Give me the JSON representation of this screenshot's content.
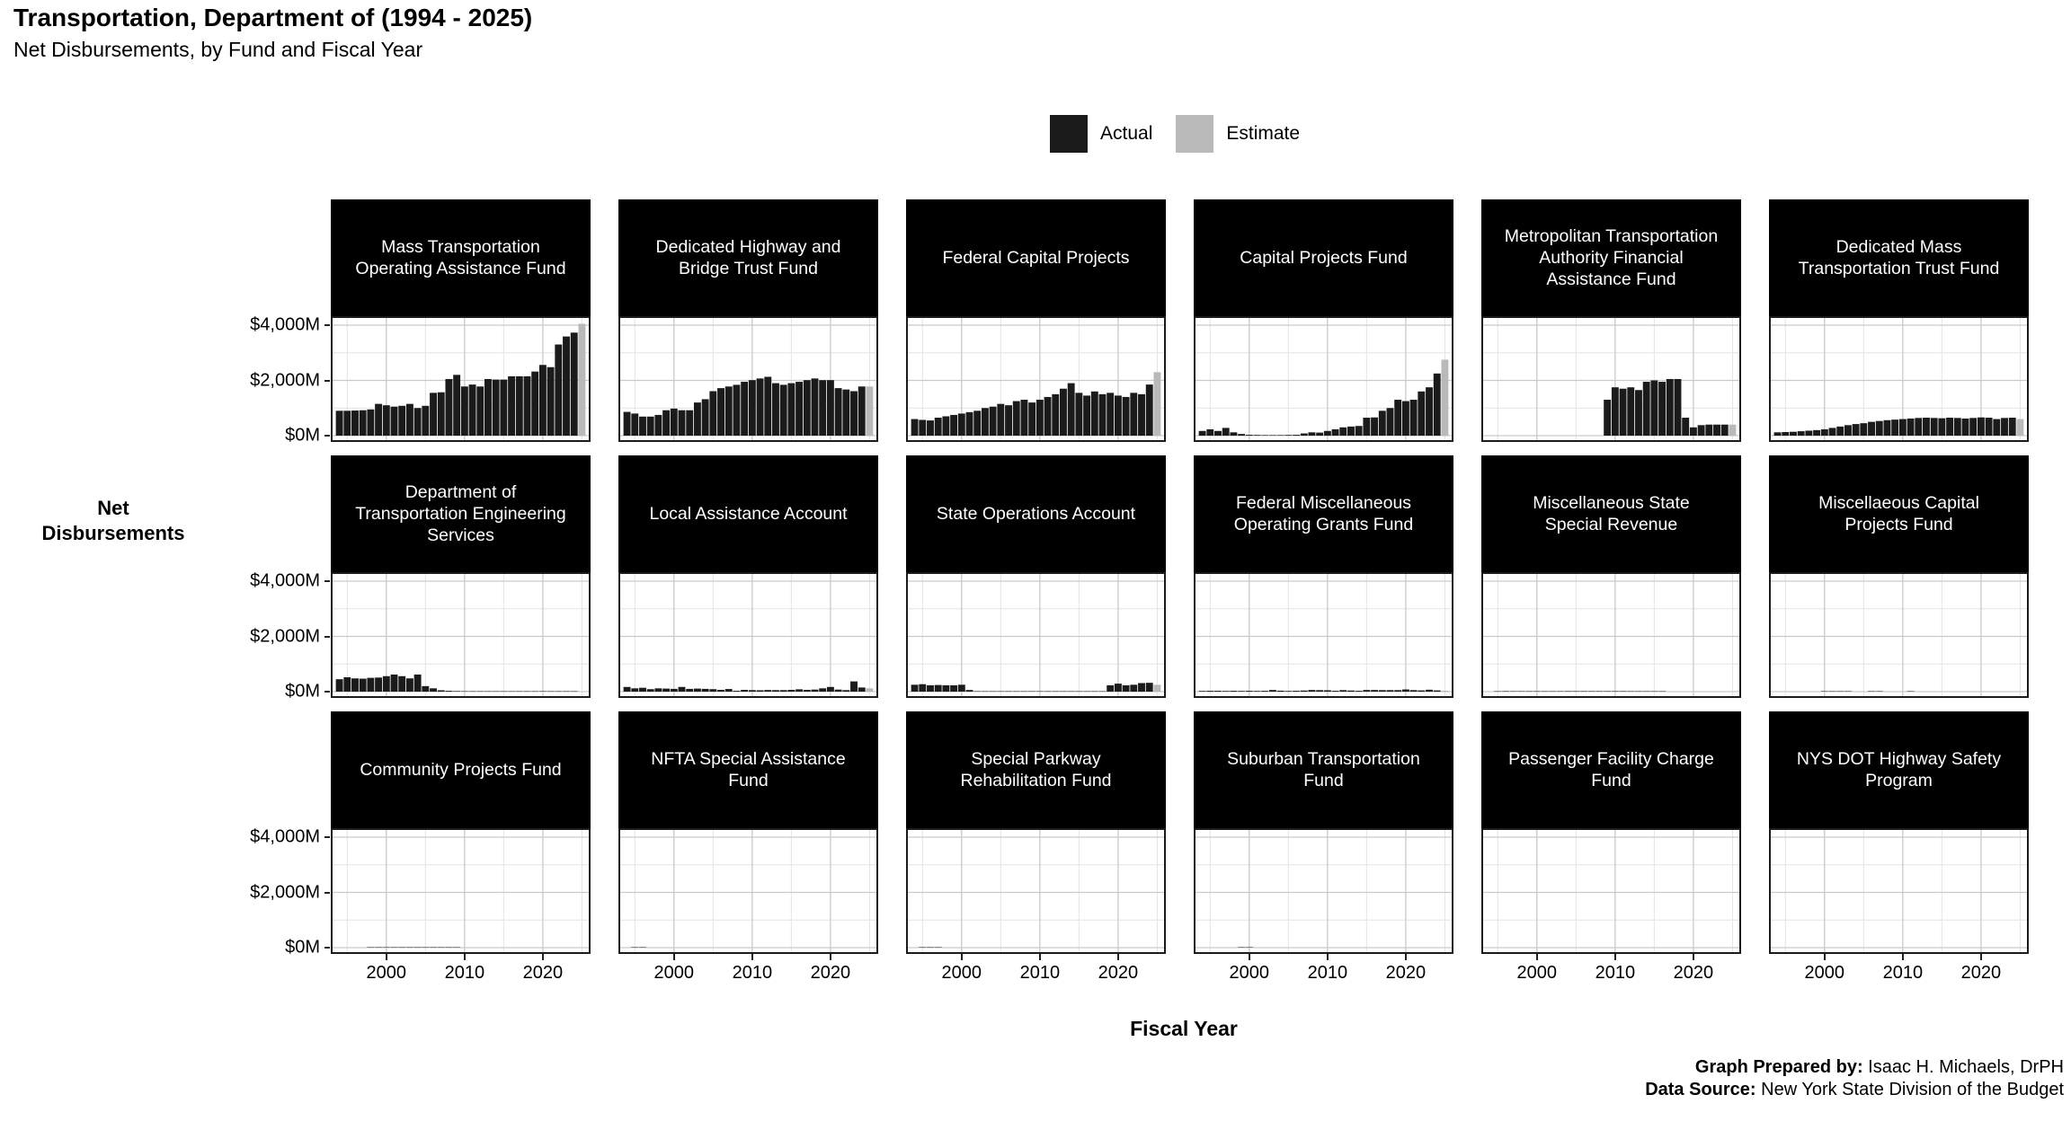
{
  "header": {
    "title": "Transportation, Department of (1994 - 2025)",
    "subtitle": "Net Disbursements, by Fund and Fiscal Year"
  },
  "legend": {
    "items": [
      {
        "label": "Actual",
        "color": "#1b1b1b"
      },
      {
        "label": "Estimate",
        "color": "#b9b9b9"
      }
    ]
  },
  "axes": {
    "y_title_lines": [
      "Net",
      "Disbursements"
    ],
    "x_title": "Fiscal Year",
    "y_tick_labels": [
      "$4,000M",
      "$2,000M",
      "$0M"
    ],
    "x_tick_labels": [
      "2000",
      "2010",
      "2020"
    ]
  },
  "footer": {
    "prepared_by_label": "Graph Prepared by:",
    "prepared_by_value": " Isaac H. Michaels, DrPH",
    "source_label": "Data Source:",
    "source_value": " New York State Division of the Budget"
  },
  "chart_data": {
    "type": "bar",
    "title": "Transportation, Department of (1994 - 2025)",
    "subtitle": "Net Disbursements, by Fund and Fiscal Year",
    "unit": "$M",
    "x_start_year": 1994,
    "x_end_year": 2025,
    "estimate_year": 2025,
    "x_domain": [
      1992.9,
      2026.1
    ],
    "ylim": [
      0,
      4000
    ],
    "y_ticks_major": [
      0,
      2000,
      4000
    ],
    "y_ticks_minor": [
      1000,
      3000
    ],
    "x_ticks_major": [
      2000,
      2010,
      2020
    ],
    "x_ticks_minor": [
      1995,
      2005,
      2015,
      2025
    ],
    "colors": {
      "actual": "#1b1b1b",
      "estimate": "#b9b9b9",
      "grid_major": "#c9c9c9",
      "grid_minor": "#e4e4e4",
      "panel_border": "#1b1b1b",
      "strip_bg": "#000000"
    },
    "legend_position": "top",
    "grid": true,
    "panels": [
      {
        "title": "Mass Transportation Operating Assistance Fund",
        "values": [
          900,
          900,
          910,
          920,
          950,
          1150,
          1100,
          1050,
          1080,
          1150,
          1000,
          1080,
          1550,
          1570,
          2050,
          2200,
          1780,
          1850,
          1780,
          2050,
          2030,
          2030,
          2150,
          2150,
          2150,
          2320,
          2560,
          2480,
          3300,
          3590,
          3730,
          4050
        ]
      },
      {
        "title": "Dedicated Highway and Bridge Trust Fund",
        "values": [
          860,
          800,
          690,
          690,
          750,
          920,
          980,
          920,
          920,
          1200,
          1320,
          1610,
          1720,
          1780,
          1840,
          1950,
          2010,
          2070,
          2130,
          1900,
          1840,
          1900,
          1950,
          2010,
          2070,
          2010,
          2010,
          1720,
          1670,
          1610,
          1780,
          1780
        ]
      },
      {
        "title": "Federal Capital Projects",
        "values": [
          600,
          570,
          550,
          650,
          700,
          750,
          800,
          850,
          900,
          1000,
          1050,
          1150,
          1100,
          1250,
          1300,
          1200,
          1300,
          1400,
          1500,
          1700,
          1900,
          1550,
          1450,
          1600,
          1500,
          1550,
          1450,
          1400,
          1550,
          1500,
          1850,
          2300
        ]
      },
      {
        "title": "Capital Projects Fund",
        "values": [
          170,
          230,
          170,
          280,
          120,
          60,
          30,
          25,
          20,
          20,
          20,
          25,
          30,
          80,
          120,
          110,
          170,
          230,
          300,
          330,
          350,
          650,
          660,
          900,
          1000,
          1300,
          1250,
          1300,
          1600,
          1750,
          2250,
          2750
        ]
      },
      {
        "title": "Metropolitan Transportation Authority Financial Assistance Fund",
        "values": [
          0,
          0,
          0,
          0,
          0,
          0,
          0,
          0,
          0,
          0,
          0,
          0,
          0,
          0,
          0,
          1300,
          1750,
          1700,
          1750,
          1650,
          1950,
          2000,
          1950,
          2050,
          2050,
          650,
          300,
          380,
          400,
          400,
          400,
          400
        ]
      },
      {
        "title": "Dedicated Mass Transportation Trust Fund",
        "values": [
          120,
          130,
          140,
          160,
          180,
          200,
          230,
          280,
          330,
          380,
          420,
          450,
          500,
          530,
          560,
          580,
          600,
          620,
          640,
          650,
          640,
          630,
          650,
          640,
          620,
          640,
          660,
          650,
          600,
          640,
          650,
          600
        ]
      },
      {
        "title": "Department of Transportation Engineering Services",
        "values": [
          450,
          520,
          480,
          470,
          500,
          510,
          560,
          620,
          560,
          480,
          620,
          200,
          120,
          50,
          30,
          20,
          15,
          10,
          8,
          6,
          5,
          4,
          3,
          3,
          2,
          2,
          2,
          1,
          1,
          1,
          1,
          0
        ]
      },
      {
        "title": "Local Assistance Account",
        "values": [
          170,
          120,
          140,
          90,
          120,
          110,
          100,
          170,
          100,
          110,
          100,
          90,
          65,
          95,
          30,
          65,
          55,
          50,
          60,
          55,
          55,
          65,
          85,
          65,
          75,
          120,
          170,
          75,
          55,
          370,
          150,
          120
        ]
      },
      {
        "title": "State Operations Account",
        "values": [
          250,
          270,
          230,
          240,
          230,
          230,
          250,
          60,
          10,
          5,
          5,
          5,
          5,
          5,
          5,
          5,
          5,
          5,
          5,
          5,
          5,
          5,
          5,
          5,
          8,
          230,
          290,
          230,
          250,
          310,
          320,
          250
        ]
      },
      {
        "title": "Federal Miscellaneous Operating Grants Fund",
        "values": [
          25,
          30,
          30,
          25,
          30,
          25,
          30,
          25,
          30,
          60,
          35,
          25,
          30,
          40,
          60,
          55,
          50,
          30,
          55,
          40,
          30,
          60,
          60,
          55,
          55,
          55,
          80,
          55,
          45,
          70,
          45,
          35
        ]
      },
      {
        "title": "Miscellaneous State Special Revenue",
        "values": [
          0,
          15,
          18,
          15,
          15,
          15,
          15,
          15,
          15,
          15,
          18,
          18,
          18,
          18,
          18,
          18,
          18,
          18,
          15,
          15,
          12,
          10,
          5,
          0,
          0,
          0,
          0,
          0,
          0,
          0,
          0,
          0
        ]
      },
      {
        "title": "Miscellaeous Capital Projects Fund",
        "values": [
          0,
          0,
          0,
          0,
          0,
          0,
          8,
          8,
          8,
          8,
          0,
          0,
          10,
          10,
          0,
          0,
          0,
          8,
          0,
          0,
          0,
          0,
          0,
          0,
          0,
          0,
          0,
          0,
          0,
          0,
          0,
          0
        ]
      },
      {
        "title": "Community Projects Fund",
        "values": [
          0,
          0,
          0,
          0,
          10,
          10,
          10,
          10,
          10,
          10,
          10,
          10,
          12,
          12,
          10,
          8,
          0,
          0,
          0,
          0,
          0,
          0,
          0,
          0,
          0,
          0,
          0,
          0,
          0,
          0,
          0,
          0
        ]
      },
      {
        "title": "NFTA Special Assistance Fund",
        "values": [
          0,
          15,
          12,
          0,
          0,
          0,
          0,
          0,
          0,
          0,
          0,
          0,
          0,
          0,
          0,
          0,
          0,
          0,
          0,
          0,
          0,
          0,
          0,
          0,
          0,
          0,
          0,
          0,
          0,
          0,
          0,
          0
        ]
      },
      {
        "title": "Special Parkway Rehabilitation Fund",
        "values": [
          0,
          12,
          10,
          8,
          0,
          0,
          0,
          0,
          0,
          0,
          0,
          0,
          0,
          0,
          0,
          0,
          0,
          0,
          0,
          0,
          0,
          0,
          0,
          0,
          0,
          0,
          0,
          0,
          0,
          0,
          0,
          0
        ]
      },
      {
        "title": "Suburban Transportation Fund",
        "values": [
          0,
          0,
          0,
          0,
          0,
          8,
          8,
          0,
          0,
          0,
          0,
          0,
          0,
          0,
          0,
          0,
          0,
          0,
          0,
          0,
          0,
          0,
          0,
          0,
          0,
          0,
          0,
          0,
          0,
          0,
          0,
          0
        ]
      },
      {
        "title": "Passenger Facility Charge Fund",
        "values": [
          0,
          0,
          0,
          0,
          0,
          0,
          0,
          0,
          0,
          0,
          0,
          0,
          0,
          0,
          0,
          0,
          0,
          0,
          0,
          0,
          0,
          0,
          0,
          0,
          0,
          0,
          0,
          0,
          0,
          0,
          0,
          0
        ]
      },
      {
        "title": "NYS DOT Highway Safety Program",
        "values": [
          0,
          0,
          0,
          0,
          0,
          0,
          0,
          0,
          0,
          0,
          0,
          0,
          0,
          0,
          0,
          0,
          0,
          0,
          0,
          0,
          0,
          0,
          0,
          0,
          0,
          0,
          0,
          0,
          0,
          0,
          0,
          0
        ]
      }
    ]
  }
}
